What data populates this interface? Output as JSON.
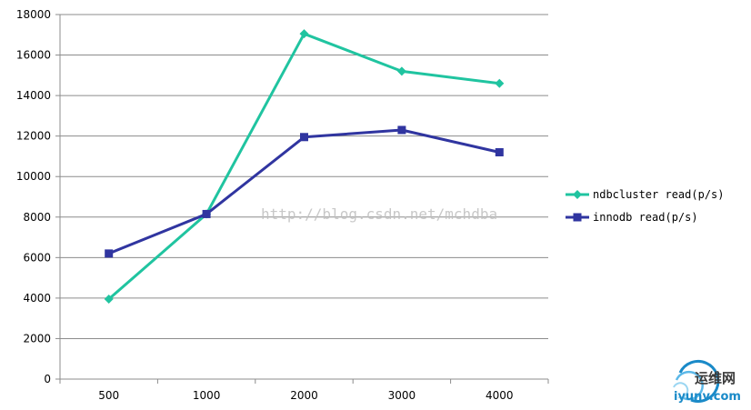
{
  "chart_data": {
    "type": "line",
    "categories": [
      "500",
      "1000",
      "2000",
      "3000",
      "4000"
    ],
    "series": [
      {
        "name": "ndbcluster read(p/s)",
        "values": [
          3950,
          8150,
          17050,
          15200,
          14600
        ],
        "color": "#20c4a0",
        "marker": "diamond"
      },
      {
        "name": "innodb read(p/s)",
        "values": [
          6200,
          8150,
          11950,
          12300,
          11200
        ],
        "color": "#3035a0",
        "marker": "square"
      }
    ],
    "ylim": [
      0,
      18000
    ],
    "yticks": [
      "0",
      "2000",
      "4000",
      "6000",
      "8000",
      "10000",
      "12000",
      "14000",
      "16000",
      "18000"
    ],
    "grid": true,
    "legend": "right"
  },
  "watermark": "http://blog.csdn.net/mchdba",
  "brand": {
    "name": "运维网",
    "url": "iyunv.com"
  }
}
